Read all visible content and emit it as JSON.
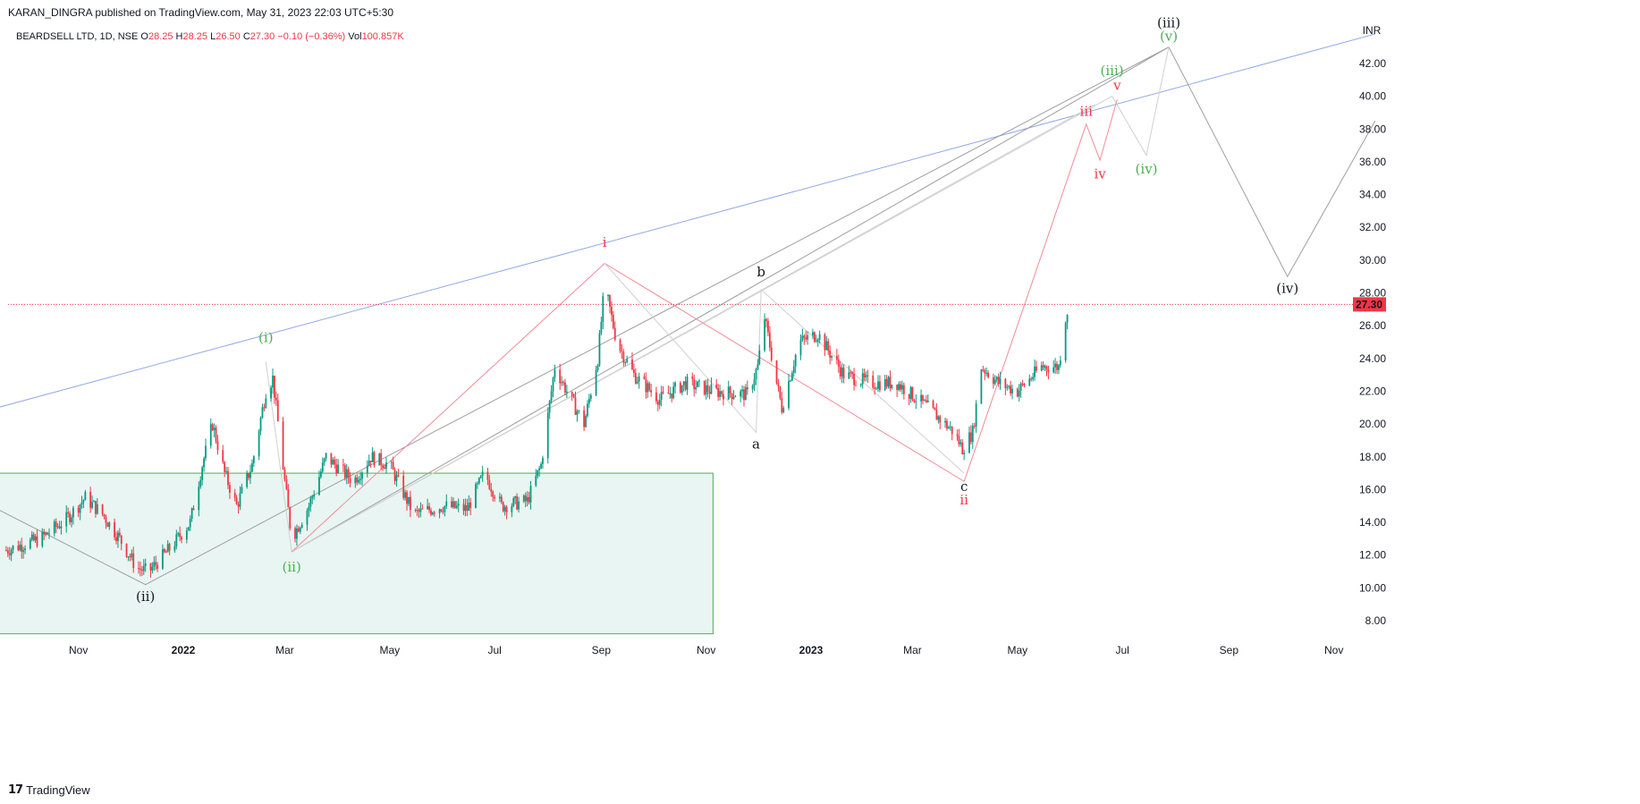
{
  "header": {
    "publish_line": "KARAN_DINGRA published on TradingView.com, May 31, 2023 22:03 UTC+5:30",
    "symbol": "BEARDSELL LTD, 1D, NSE",
    "ohlc": [
      {
        "key": "O",
        "value": "28.25"
      },
      {
        "key": "H",
        "value": "28.25"
      },
      {
        "key": "L",
        "value": "26.50"
      },
      {
        "key": "C",
        "value": "27.30"
      }
    ],
    "change": "−0.10 (−0.36%)",
    "vol_key": "Vol",
    "vol_value": "100.857K"
  },
  "footer": {
    "logo": "17",
    "brand": "TradingView"
  },
  "colors": {
    "up": "#089981",
    "down": "#f23645",
    "red_wave": "#f23645",
    "green_wave": "#4caf50",
    "black_wave": "#131722",
    "trend": "#90a8e8",
    "box_fill": "#e9f5f2",
    "box_stroke": "#4caf50"
  },
  "chart_data": {
    "type": "candlestick",
    "currency_label": "INR",
    "last_price": 27.3,
    "last_price_label": "27.30",
    "y_ticks": [
      "8.00",
      "10.00",
      "12.00",
      "14.00",
      "16.00",
      "18.00",
      "20.00",
      "22.00",
      "24.00",
      "26.00",
      "28.00",
      "30.00",
      "32.00",
      "34.00",
      "36.00",
      "38.00",
      "40.00",
      "42.00"
    ],
    "x_ticks": [
      {
        "label": "Nov",
        "date": "2021-11-01",
        "bold": false
      },
      {
        "label": "2022",
        "date": "2022-01-01",
        "bold": true
      },
      {
        "label": "Mar",
        "date": "2022-03-01",
        "bold": false
      },
      {
        "label": "May",
        "date": "2022-05-01",
        "bold": false
      },
      {
        "label": "Jul",
        "date": "2022-07-01",
        "bold": false
      },
      {
        "label": "Sep",
        "date": "2022-09-01",
        "bold": false
      },
      {
        "label": "Nov",
        "date": "2022-11-01",
        "bold": false
      },
      {
        "label": "2023",
        "date": "2023-01-01",
        "bold": true
      },
      {
        "label": "Mar",
        "date": "2023-03-01",
        "bold": false
      },
      {
        "label": "May",
        "date": "2023-05-01",
        "bold": false
      },
      {
        "label": "Jul",
        "date": "2023-07-01",
        "bold": false
      },
      {
        "label": "Sep",
        "date": "2023-09-01",
        "bold": false
      },
      {
        "label": "Nov",
        "date": "2023-11-01",
        "bold": false
      }
    ],
    "price_path": [
      [
        "2021-09-20",
        12.3
      ],
      [
        "2021-10-10",
        13.0
      ],
      [
        "2021-10-25",
        14.2
      ],
      [
        "2021-11-05",
        15.5
      ],
      [
        "2021-11-15",
        14.5
      ],
      [
        "2021-11-25",
        13.0
      ],
      [
        "2021-12-05",
        11.2
      ],
      [
        "2021-12-12",
        11.0
      ],
      [
        "2021-12-25",
        12.5
      ],
      [
        "2022-01-05",
        14.0
      ],
      [
        "2022-01-12",
        17.5
      ],
      [
        "2022-01-18",
        20.0
      ],
      [
        "2022-01-25",
        17.0
      ],
      [
        "2022-02-01",
        15.0
      ],
      [
        "2022-02-10",
        17.5
      ],
      [
        "2022-02-18",
        22.0
      ],
      [
        "2022-02-22",
        22.8
      ],
      [
        "2022-03-01",
        16.5
      ],
      [
        "2022-03-05",
        13.0
      ],
      [
        "2022-03-15",
        15.0
      ],
      [
        "2022-03-25",
        18.0
      ],
      [
        "2022-04-10",
        16.5
      ],
      [
        "2022-04-20",
        18.0
      ],
      [
        "2022-05-01",
        17.5
      ],
      [
        "2022-05-15",
        14.5
      ],
      [
        "2022-06-01",
        15.0
      ],
      [
        "2022-06-15",
        14.8
      ],
      [
        "2022-06-25",
        17.0
      ],
      [
        "2022-07-05",
        15.0
      ],
      [
        "2022-07-20",
        15.3
      ],
      [
        "2022-07-28",
        17.5
      ],
      [
        "2022-08-05",
        23.5
      ],
      [
        "2022-08-12",
        22.0
      ],
      [
        "2022-08-22",
        20.0
      ],
      [
        "2022-08-30",
        24.0
      ],
      [
        "2022-09-03",
        28.5
      ],
      [
        "2022-09-10",
        25.0
      ],
      [
        "2022-09-20",
        23.0
      ],
      [
        "2022-10-05",
        21.5
      ],
      [
        "2022-10-20",
        22.5
      ],
      [
        "2022-11-05",
        22.0
      ],
      [
        "2022-11-25",
        21.8
      ],
      [
        "2022-12-01",
        23.5
      ],
      [
        "2022-12-05",
        26.5
      ],
      [
        "2022-12-12",
        22.5
      ],
      [
        "2022-12-15",
        21.0
      ],
      [
        "2022-12-25",
        25.0
      ],
      [
        "2023-01-05",
        25.5
      ],
      [
        "2023-01-20",
        23.0
      ],
      [
        "2023-02-05",
        22.5
      ],
      [
        "2023-02-20",
        22.5
      ],
      [
        "2023-03-10",
        21.0
      ],
      [
        "2023-03-25",
        19.5
      ],
      [
        "2023-03-30",
        18.5
      ],
      [
        "2023-04-05",
        19.5
      ],
      [
        "2023-04-10",
        23.5
      ],
      [
        "2023-04-20",
        22.5
      ],
      [
        "2023-05-01",
        22.0
      ],
      [
        "2023-05-15",
        23.5
      ],
      [
        "2023-05-25",
        23.5
      ],
      [
        "2023-05-29",
        26.5
      ],
      [
        "2023-05-31",
        27.3
      ]
    ],
    "trendlines": [
      {
        "name": "blue-trendline",
        "color": "#90a8e8",
        "points": [
          [
            "2021-09-15",
            21.0
          ],
          [
            "2023-11-25",
            43.8
          ]
        ]
      },
      {
        "name": "gray-channel-line",
        "color": "#9e9e9e",
        "points": [
          [
            "2022-03-05",
            12.2
          ],
          [
            "2023-07-28",
            43.0
          ]
        ]
      },
      {
        "name": "light-channel-line",
        "color": "#cfcfcf",
        "points": [
          [
            "2022-03-05",
            12.2
          ],
          [
            "2023-06-15",
            39.5
          ]
        ]
      }
    ],
    "wave_paths": [
      {
        "name": "black-wave-path",
        "color": "#9e9e9e",
        "points": [
          [
            "2021-09-15",
            14.8
          ],
          [
            "2021-12-10",
            10.2
          ],
          [
            "2022-04-20",
            17.5
          ],
          [
            "2023-07-28",
            43.0
          ],
          [
            "2023-10-05",
            29.0
          ],
          [
            "2023-11-25",
            38.5
          ]
        ]
      },
      {
        "name": "green-wave-path",
        "color": "#d0d0d0",
        "points": [
          [
            "2022-02-18",
            23.8
          ],
          [
            "2022-03-05",
            12.2
          ],
          [
            "2023-06-25",
            40.0
          ],
          [
            "2023-07-15",
            36.4
          ],
          [
            "2023-07-28",
            43.0
          ]
        ]
      },
      {
        "name": "red-wave-path",
        "color": "#f28b95",
        "points": [
          [
            "2022-03-05",
            12.2
          ],
          [
            "2022-09-03",
            29.8
          ],
          [
            "2023-03-31",
            16.5
          ],
          [
            "2023-06-10",
            38.3
          ],
          [
            "2023-06-18",
            36.1
          ],
          [
            "2023-06-28",
            39.8
          ]
        ]
      },
      {
        "name": "abc-wave-path",
        "color": "#d0d0d0",
        "points": [
          [
            "2022-09-03",
            29.8
          ],
          [
            "2022-11-30",
            19.5
          ],
          [
            "2022-12-03",
            28.2
          ],
          [
            "2023-03-31",
            17.0
          ]
        ]
      }
    ],
    "wave_labels": [
      {
        "text": "(ii)",
        "date": "2021-12-10",
        "price": 9.2,
        "color": "#131722"
      },
      {
        "text": "(i)",
        "date": "2022-02-18",
        "price": 25.0,
        "color": "#4caf50"
      },
      {
        "text": "(ii)",
        "date": "2022-03-05",
        "price": 11.0,
        "color": "#4caf50"
      },
      {
        "text": "i",
        "date": "2022-09-03",
        "price": 30.8,
        "color": "#f23645"
      },
      {
        "text": "b",
        "date": "2022-12-03",
        "price": 29.0,
        "color": "#131722"
      },
      {
        "text": "a",
        "date": "2022-11-30",
        "price": 18.5,
        "color": "#131722"
      },
      {
        "text": "c",
        "date": "2023-03-31",
        "price": 15.9,
        "color": "#131722"
      },
      {
        "text": "ii",
        "date": "2023-03-31",
        "price": 15.1,
        "color": "#f23645"
      },
      {
        "text": "iii",
        "date": "2023-06-10",
        "price": 38.8,
        "color": "#f23645"
      },
      {
        "text": "iv",
        "date": "2023-06-18",
        "price": 35.0,
        "color": "#f23645"
      },
      {
        "text": "v",
        "date": "2023-06-28",
        "price": 40.4,
        "color": "#f23645"
      },
      {
        "text": "(iii)",
        "date": "2023-06-25",
        "price": 41.3,
        "color": "#4caf50"
      },
      {
        "text": "(iv)",
        "date": "2023-07-15",
        "price": 35.3,
        "color": "#4caf50"
      },
      {
        "text": "(v)",
        "date": "2023-07-28",
        "price": 43.4,
        "color": "#4caf50"
      },
      {
        "text": "(iii)",
        "date": "2023-07-28",
        "price": 44.2,
        "color": "#131722"
      },
      {
        "text": "(iv)",
        "date": "2023-10-05",
        "price": 28.0,
        "color": "#131722"
      }
    ],
    "zone_box": {
      "x0": "2021-09-15",
      "x1": "2022-11-05",
      "y0": 7.2,
      "y1": 17.0
    }
  }
}
